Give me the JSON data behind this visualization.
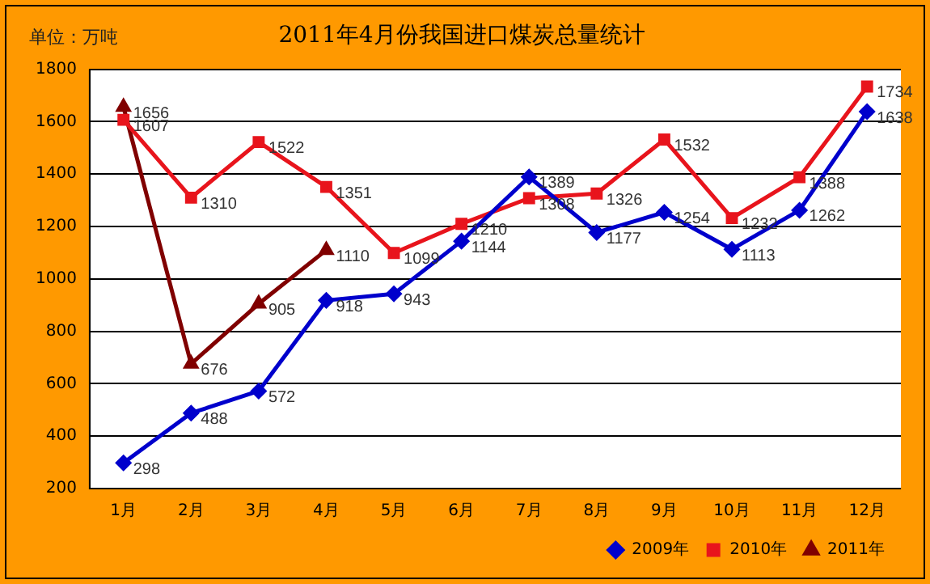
{
  "chart_data": {
    "type": "line",
    "title": "2011年4月份我国进口煤炭总量统计",
    "annotations": [
      "单位：万吨"
    ],
    "categories": [
      "1月",
      "2月",
      "3月",
      "4月",
      "5月",
      "6月",
      "7月",
      "8月",
      "9月",
      "10月",
      "11月",
      "12月"
    ],
    "series": [
      {
        "name": "2009年",
        "color": "#0000cc",
        "marker": "diamond",
        "values": [
          298,
          488,
          572,
          918,
          943,
          1144,
          1389,
          1177,
          1254,
          1113,
          1262,
          1638
        ]
      },
      {
        "name": "2010年",
        "color": "#e8141c",
        "marker": "square",
        "values": [
          1607,
          1310,
          1522,
          1351,
          1099,
          1210,
          1308,
          1326,
          1532,
          1232,
          1388,
          1734
        ]
      },
      {
        "name": "2011年",
        "color": "#800000",
        "marker": "triangle",
        "values": [
          1656,
          676,
          905,
          1110,
          null,
          null,
          null,
          null,
          null,
          null,
          null,
          null
        ]
      }
    ],
    "ylim": [
      200,
      1800
    ],
    "yticks": [
      200,
      400,
      600,
      800,
      1000,
      1200,
      1400,
      1600,
      1800
    ],
    "grid": "y",
    "legend": "bottom",
    "data_labels": true,
    "line_style": "solid"
  }
}
